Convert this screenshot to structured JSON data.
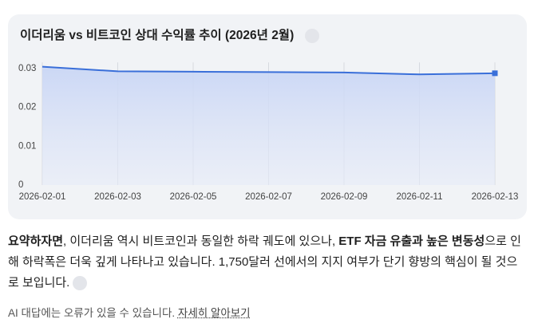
{
  "chart_data": {
    "type": "line",
    "title": "이더리움 vs 비트코인 상대 수익률 추이 (2026년 2월)",
    "x": [
      "2026-02-01",
      "2026-02-03",
      "2026-02-05",
      "2026-02-07",
      "2026-02-09",
      "2026-02-11",
      "2026-02-13"
    ],
    "values": [
      0.0305,
      0.0293,
      0.0292,
      0.0291,
      0.029,
      0.0285,
      0.0288
    ],
    "color": "#3a6fd9",
    "ylim": [
      0,
      0.0316
    ],
    "yticks": [
      0,
      0.01,
      0.02,
      0.03
    ],
    "grid": true
  },
  "summary": {
    "bold_1": "요약하자면",
    "text_1": ", 이더리움 역시 비트코인과 동일한 하락 궤도에 있으나, ",
    "bold_2": "ETF 자금 유출과 높은 변동성",
    "text_2": "으로 인해 하락폭은 더욱 깊게 나타나고 있습니다. 1,750달러 선에서의 지지 여부가 단기 향방의 핵심이 될 것으로 보입니다."
  },
  "footer": {
    "notice": "AI 대답에는 오류가 있을 수 있습니다.",
    "link": "자세히 알아보기"
  }
}
